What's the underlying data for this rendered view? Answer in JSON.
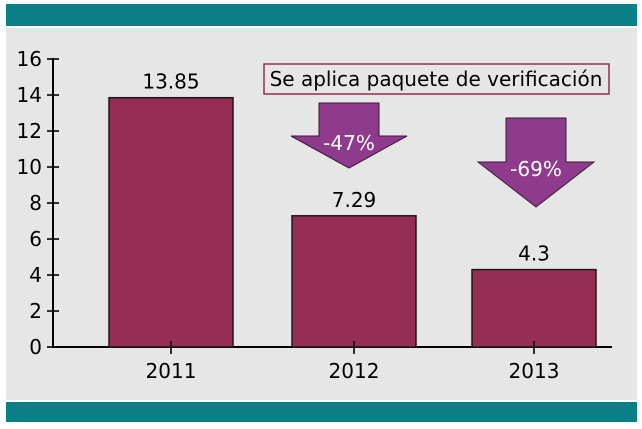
{
  "chart_data": {
    "type": "bar",
    "categories": [
      "2011",
      "2012",
      "2013"
    ],
    "values": [
      13.85,
      7.29,
      4.3
    ],
    "value_labels": [
      "13.85",
      "7.29",
      "4.3"
    ],
    "y_ticks": [
      0,
      2,
      4,
      6,
      8,
      10,
      12,
      14,
      16
    ],
    "ylim": [
      0,
      16
    ],
    "grid": false,
    "title": "",
    "xlabel": "",
    "ylabel": "",
    "annotation_box": "Se aplica paquete de verificación",
    "change_arrows": [
      {
        "label": "-47%"
      },
      {
        "label": "-69%"
      }
    ],
    "colors": {
      "bar": "#962d55",
      "arrow": "#8e3a8d",
      "band": "#0a7f86",
      "panel": "#e6e6e6",
      "box_border": "#962d55"
    }
  }
}
